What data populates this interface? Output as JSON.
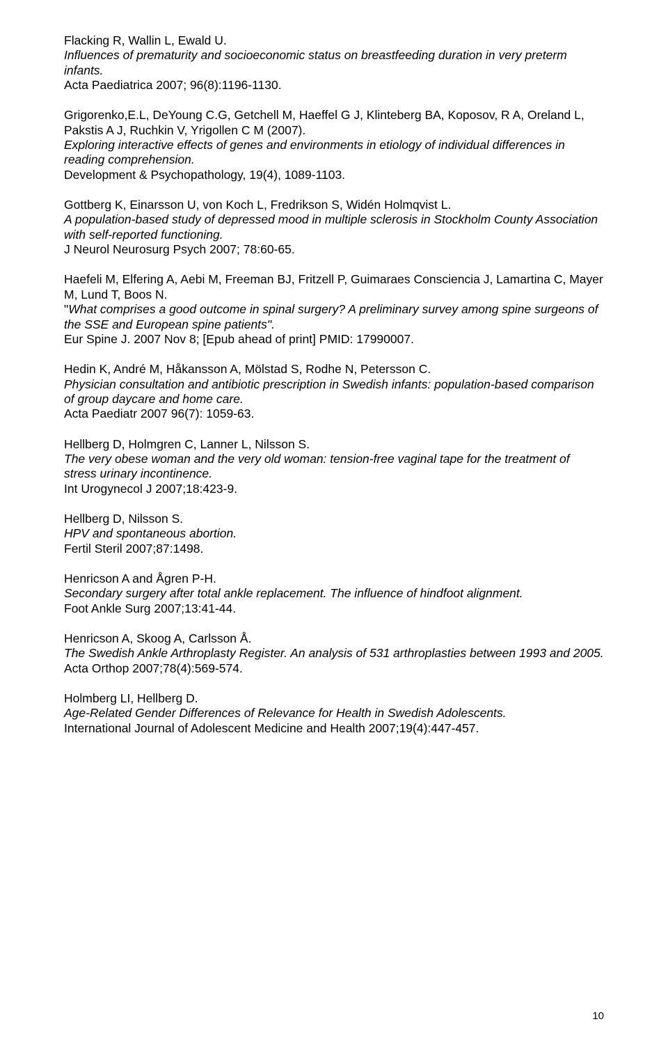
{
  "refs": [
    {
      "authors": "Flacking R, Wallin L, Ewald U.",
      "title": "Influences of prematurity and socioeconomic status on breastfeeding duration in very preterm infants.",
      "source": "Acta Paediatrica 2007; 96(8):1196-1130."
    },
    {
      "authors": "Grigorenko,E.L, DeYoung C.G, Getchell M, Haeffel G J, Klinteberg BA, Koposov, R A, Oreland L, Pakstis A J, Ruchkin V, Yrigollen C M (2007).",
      "title": "Exploring interactive effects of genes and environments in etiology of individual differences in reading comprehension.",
      "source": "Development & Psychopathology, 19(4), 1089-1103."
    },
    {
      "authors": "Gottberg K, Einarsson U, von Koch L, Fredrikson S, Widén Holmqvist L.",
      "title": "A population-based study of depressed mood in multiple sclerosis in Stockholm County Association with self-reported functioning.",
      "source": "J Neurol Neurosurg Psych 2007; 78:60-65."
    },
    {
      "authors": "Haefeli M, Elfering A, Aebi M, Freeman BJ, Fritzell P, Guimaraes Consciencia J, Lamartina C, Mayer M, Lund T, Boos N.",
      "titleQuoted": true,
      "title": "What comprises a good outcome in spinal surgery? A preliminary survey among spine surgeons of the SSE and European spine patients\".",
      "source": "Eur Spine J. 2007 Nov 8; [Epub ahead of print] PMID: 17990007."
    },
    {
      "authors": "Hedin K, André M, Håkansson A, Mölstad S, Rodhe N, Petersson C.",
      "title": "Physician consultation and antibiotic prescription in Swedish infants: population-based comparison of group daycare and home care.",
      "source": "Acta Paediatr 2007 96(7): 1059-63."
    },
    {
      "authors": "Hellberg D, Holmgren C, Lanner L, Nilsson S.",
      "title": "The very obese woman and the very old woman: tension-free vaginal tape for the treatment of stress urinary incontinence.",
      "source": "Int Urogynecol J 2007;18:423-9."
    },
    {
      "authors": "Hellberg D, Nilsson S.",
      "title": "HPV and spontaneous abortion.",
      "source": "Fertil Steril 2007;87:1498."
    },
    {
      "authors": "Henricson A and Ågren P-H.",
      "title": "Secondary surgery after total ankle replacement. The influence of hindfoot alignment.",
      "source": " Foot Ankle Surg 2007;13:41-44."
    },
    {
      "authors": "Henricson A, Skoog A, Carlsson Å.",
      "title": "The Swedish Ankle Arthroplasty Register. An analysis of 531 arthroplasties between 1993 and 2005.",
      "source": "Acta Orthop 2007;78(4):569-574."
    },
    {
      "authors": "Holmberg LI, Hellberg D.",
      "title": "Age-Related Gender Differences of Relevance for Health in Swedish Adolescents.",
      "source": "International Journal of Adolescent Medicine and Health 2007;19(4):447-457."
    }
  ],
  "pageNumber": "10"
}
